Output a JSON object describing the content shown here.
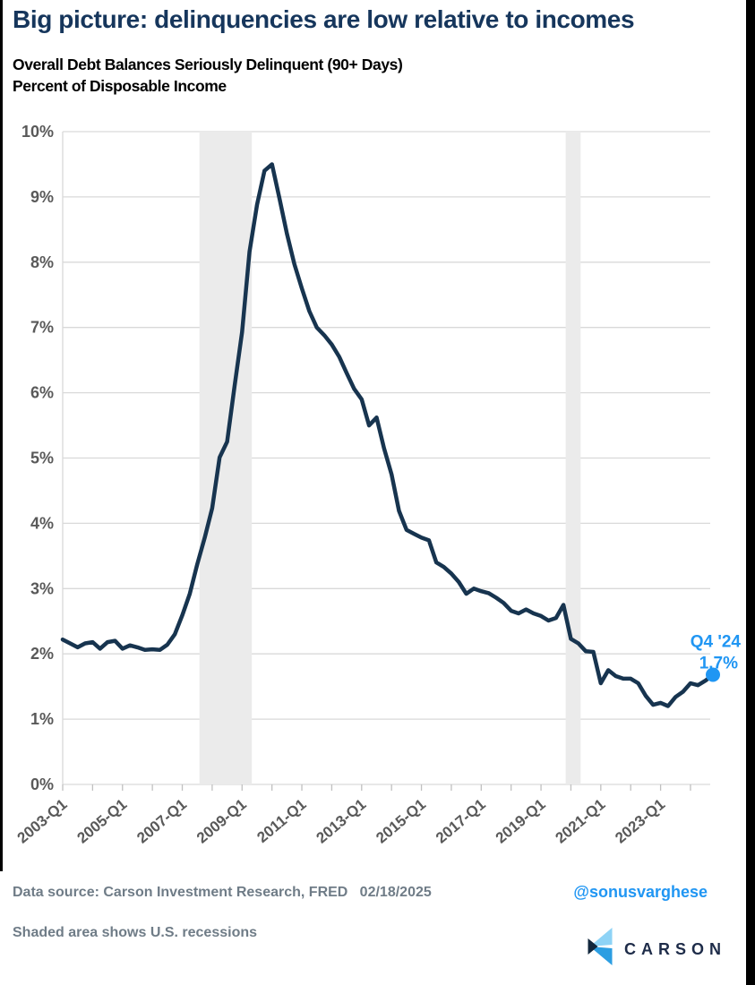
{
  "header": {
    "title": "Big picture: delinquencies are low relative to incomes"
  },
  "chart": {
    "title_line1": "Overall Debt Balances Seriously Delinquent (90+ Days)",
    "title_line2": "Percent of Disposable Income"
  },
  "chart_data": {
    "type": "line",
    "title": "Overall Debt Balances Seriously Delinquent (90+ Days)",
    "ylabel": "Percent of Disposable Income",
    "frequency": "quarterly",
    "x_start": "2003-Q1",
    "x_end": "2024-Q4",
    "values": [
      2.22,
      2.16,
      2.1,
      2.16,
      2.18,
      2.08,
      2.18,
      2.2,
      2.08,
      2.13,
      2.1,
      2.06,
      2.07,
      2.06,
      2.14,
      2.3,
      2.59,
      2.92,
      3.37,
      3.78,
      4.23,
      5.01,
      5.25,
      6.1,
      6.93,
      8.16,
      8.88,
      9.4,
      9.5,
      8.98,
      8.44,
      7.97,
      7.6,
      7.25,
      7.0,
      6.88,
      6.74,
      6.55,
      6.3,
      6.06,
      5.9,
      5.5,
      5.62,
      5.15,
      4.75,
      4.19,
      3.9,
      3.84,
      3.78,
      3.74,
      3.4,
      3.33,
      3.23,
      3.1,
      2.92,
      3.0,
      2.96,
      2.93,
      2.86,
      2.78,
      2.66,
      2.62,
      2.68,
      2.62,
      2.58,
      2.51,
      2.55,
      2.75,
      2.23,
      2.16,
      2.04,
      2.03,
      1.55,
      1.75,
      1.66,
      1.62,
      1.62,
      1.55,
      1.36,
      1.22,
      1.25,
      1.2,
      1.34,
      1.42,
      1.55,
      1.52,
      1.59,
      1.68
    ],
    "ylim": [
      0,
      10
    ],
    "y_tick_labels": [
      "0%",
      "1%",
      "2%",
      "3%",
      "4%",
      "5%",
      "6%",
      "7%",
      "8%",
      "9%",
      "10%"
    ],
    "x_tick_labels": [
      "2003-Q1",
      "2005-Q1",
      "2007-Q1",
      "2009-Q1",
      "2011-Q1",
      "2013-Q1",
      "2015-Q1",
      "2017-Q1",
      "2019-Q1",
      "2021-Q1",
      "2023-Q1"
    ],
    "x_minor_tick_years": [
      2003,
      2004,
      2005,
      2006,
      2007,
      2008,
      2009,
      2010,
      2011,
      2012,
      2013,
      2014,
      2015,
      2016,
      2017,
      2018,
      2019,
      2020,
      2021,
      2022,
      2023,
      2024
    ],
    "grid": "horizontal",
    "legend": "none",
    "line_color": "#17344f",
    "grid_color": "#d9d9d9",
    "tick_color": "#c0c0c0",
    "axis_label_color": "#595959",
    "recession_color": "#ebebeb",
    "recessions": [
      {
        "start": "2007-Q4",
        "end": "2009-Q2",
        "from_index": 18.3,
        "to_index": 25.3
      },
      {
        "start": "2020-Q1",
        "end": "2020-Q2",
        "from_index": 67.3,
        "to_index": 69.3
      }
    ],
    "annotation": {
      "line1": "Q4 '24",
      "line2": "1.7%",
      "color": "#2096f3",
      "point_index": 87,
      "point_value": 1.7
    }
  },
  "footer": {
    "data_source": "Data source: Carson Investment Research, FRED   02/18/2025",
    "handle": "@sonusvarghese",
    "note": "Shaded area shows U.S. recessions",
    "logo_text": "CARSON"
  },
  "colors": {
    "title_navy": "#16365c",
    "accent_blue": "#2096f3",
    "footer_gray": "#6f7c87",
    "logo_light_blue": "#8ed3f6",
    "logo_mid_blue": "#2c9ee2",
    "logo_dark_navy": "#12273d"
  }
}
